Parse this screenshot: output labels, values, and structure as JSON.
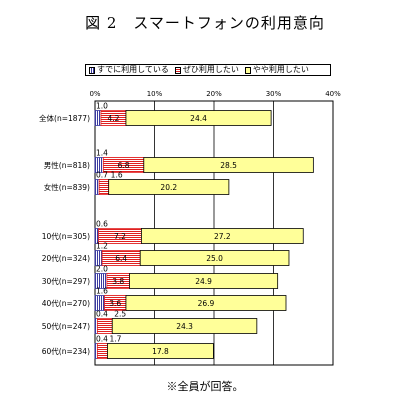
{
  "title": "図 2　スマートフォンの利用意向",
  "footnote": "※全員が回答。",
  "chart_data": {
    "type": "bar",
    "orientation": "horizontal",
    "stacked": true,
    "xlim": [
      0,
      40
    ],
    "xticks": [
      "0%",
      "10%",
      "20%",
      "30%",
      "40%"
    ],
    "grid": true,
    "legend_position": "top",
    "categories": [
      "全体(n=1877)",
      "男性(n=818)",
      "女性(n=839)",
      "10代(n=305)",
      "20代(n=324)",
      "30代(n=297)",
      "40代(n=270)",
      "50代(n=247)",
      "60代(n=234)"
    ],
    "category_labels": [
      "全体(n=1877)",
      "男性(n=818)",
      "女性(n=839)",
      "10代(n=305)",
      "20代(n=324)",
      "30代(n=297)",
      "40代(n=270)",
      "50代(n=247)",
      "60代(n=234)"
    ],
    "series": [
      {
        "name": "すでに利用している",
        "color": "#3a3aa0",
        "values": [
          1.0,
          1.4,
          0.7,
          0.6,
          1.2,
          2.0,
          1.6,
          0.4,
          0.4
        ],
        "labels": [
          "1.0",
          "1.4",
          "0.7",
          "0.6",
          "1.2",
          "2.0",
          "1.6",
          "0.4",
          "0.4"
        ]
      },
      {
        "name": "ぜひ利用したい",
        "color": "#e02020",
        "values": [
          4.2,
          6.8,
          1.6,
          7.2,
          6.4,
          3.8,
          3.6,
          2.5,
          1.7
        ],
        "labels": [
          "4.2",
          "6.8",
          "1.6",
          "7.2",
          "6.4",
          "3.8",
          "3.6",
          "2.5",
          "1.7"
        ]
      },
      {
        "name": "やや利用したい",
        "color": "#ffff99",
        "values": [
          24.4,
          28.5,
          20.2,
          27.2,
          25.0,
          24.9,
          26.9,
          24.3,
          17.8
        ],
        "labels": [
          "24.4",
          "28.5",
          "20.2",
          "27.2",
          "25.0",
          "24.9",
          "26.9",
          "24.3",
          "17.8"
        ]
      }
    ]
  }
}
